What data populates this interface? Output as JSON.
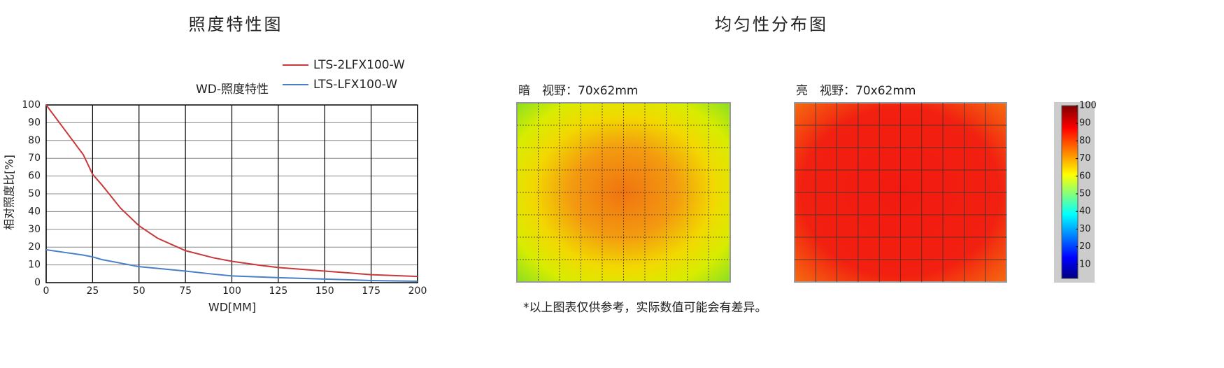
{
  "chart_data": [
    {
      "type": "line",
      "title": "照度特性图",
      "subtitle": "WD-照度特性",
      "xlabel": "WD[MM]",
      "ylabel": "相对照度比[%]",
      "x": [
        0,
        10,
        20,
        25,
        30,
        40,
        50,
        60,
        75,
        90,
        100,
        115,
        125,
        150,
        175,
        200
      ],
      "series": [
        {
          "name": "LTS-2LFX100-W",
          "color": "#c8393b",
          "values": [
            100,
            86,
            72,
            61,
            55,
            42,
            32,
            25,
            18,
            14,
            12,
            9.8,
            8.5,
            6.5,
            4.5,
            3.5
          ]
        },
        {
          "name": "LTS-LFX100-W",
          "color": "#4a7fc8",
          "values": [
            18.5,
            17,
            15.5,
            14.5,
            13,
            11,
            9,
            8,
            6.5,
            4.8,
            3.8,
            3.2,
            2.8,
            2,
            1.2,
            0.8
          ]
        }
      ],
      "xlim": [
        0,
        200
      ],
      "xticks": [
        0,
        25,
        50,
        75,
        100,
        125,
        150,
        175,
        200
      ],
      "ylim": [
        0,
        100
      ],
      "yticks": [
        0,
        10,
        20,
        30,
        40,
        50,
        60,
        70,
        80,
        90,
        100
      ],
      "grid": true
    },
    {
      "type": "heatmap",
      "title": "均匀性分布图",
      "panels": [
        {
          "label": "暗　视野：70x62mm"
        },
        {
          "label": "亮　视野：70x62mm"
        }
      ],
      "colormap": "jet",
      "clim": [
        2,
        100
      ],
      "cticks": [
        10,
        20,
        30,
        40,
        50,
        60,
        70,
        80,
        90,
        100
      ],
      "footnote": "*以上图表仅供参考，实际数值可能会有差异。"
    }
  ]
}
